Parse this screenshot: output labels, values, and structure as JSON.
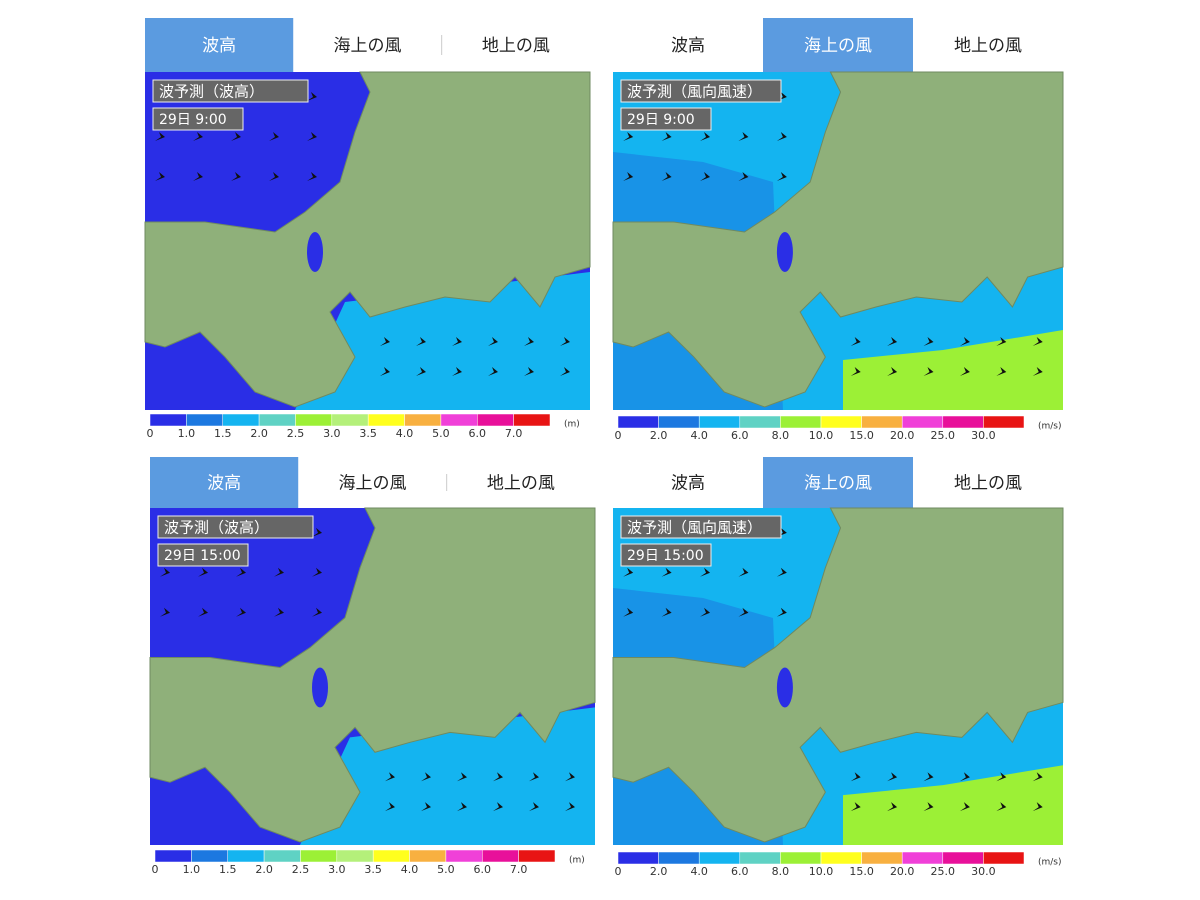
{
  "panels": [
    {
      "tabs": [
        "波高",
        "海上の風",
        "地上の風"
      ],
      "active_tab": 0,
      "title": "波予測（波高）",
      "time": "29日 9:00",
      "legend": {
        "colors": [
          "#2a2ee6",
          "#1c78e0",
          "#14b4f0",
          "#5fd2c4",
          "#9cf036",
          "#b4f07a",
          "#ffff1e",
          "#f8b040",
          "#f040d8",
          "#e8109a",
          "#e81414"
        ],
        "labels": [
          "0",
          "1.0",
          "1.5",
          "2.0",
          "2.5",
          "3.0",
          "3.5",
          "4.0",
          "5.0",
          "6.0",
          "7.0"
        ],
        "unit": "(m)"
      }
    },
    {
      "tabs": [
        "波高",
        "海上の風",
        "地上の風"
      ],
      "active_tab": 1,
      "title": "波予測（風向風速）",
      "time": "29日 9:00",
      "legend": {
        "colors": [
          "#2a2ee6",
          "#1c78e0",
          "#14b4f0",
          "#5fd2c4",
          "#9cf036",
          "#ffff1e",
          "#f8b040",
          "#f040d8",
          "#e8109a",
          "#e81414"
        ],
        "labels": [
          "0",
          "2.0",
          "4.0",
          "6.0",
          "8.0",
          "10.0",
          "15.0",
          "20.0",
          "25.0",
          "30.0"
        ],
        "unit": "(m/s)"
      }
    },
    {
      "tabs": [
        "波高",
        "海上の風",
        "地上の風"
      ],
      "active_tab": 0,
      "title": "波予測（波高）",
      "time": "29日 15:00",
      "legend": {
        "colors": [
          "#2a2ee6",
          "#1c78e0",
          "#14b4f0",
          "#5fd2c4",
          "#9cf036",
          "#b4f07a",
          "#ffff1e",
          "#f8b040",
          "#f040d8",
          "#e8109a",
          "#e81414"
        ],
        "labels": [
          "0",
          "1.0",
          "1.5",
          "2.0",
          "2.5",
          "3.0",
          "3.5",
          "4.0",
          "5.0",
          "6.0",
          "7.0"
        ],
        "unit": "(m)"
      }
    },
    {
      "tabs": [
        "波高",
        "海上の風",
        "地上の風"
      ],
      "active_tab": 1,
      "title": "波予測（風向風速）",
      "time": "29日 15:00",
      "legend": {
        "colors": [
          "#2a2ee6",
          "#1c78e0",
          "#14b4f0",
          "#5fd2c4",
          "#9cf036",
          "#ffff1e",
          "#f8b040",
          "#f040d8",
          "#e8109a",
          "#e81414"
        ],
        "labels": [
          "0",
          "2.0",
          "4.0",
          "6.0",
          "8.0",
          "10.0",
          "15.0",
          "20.0",
          "25.0",
          "30.0"
        ],
        "unit": "(m/s)"
      }
    }
  ]
}
